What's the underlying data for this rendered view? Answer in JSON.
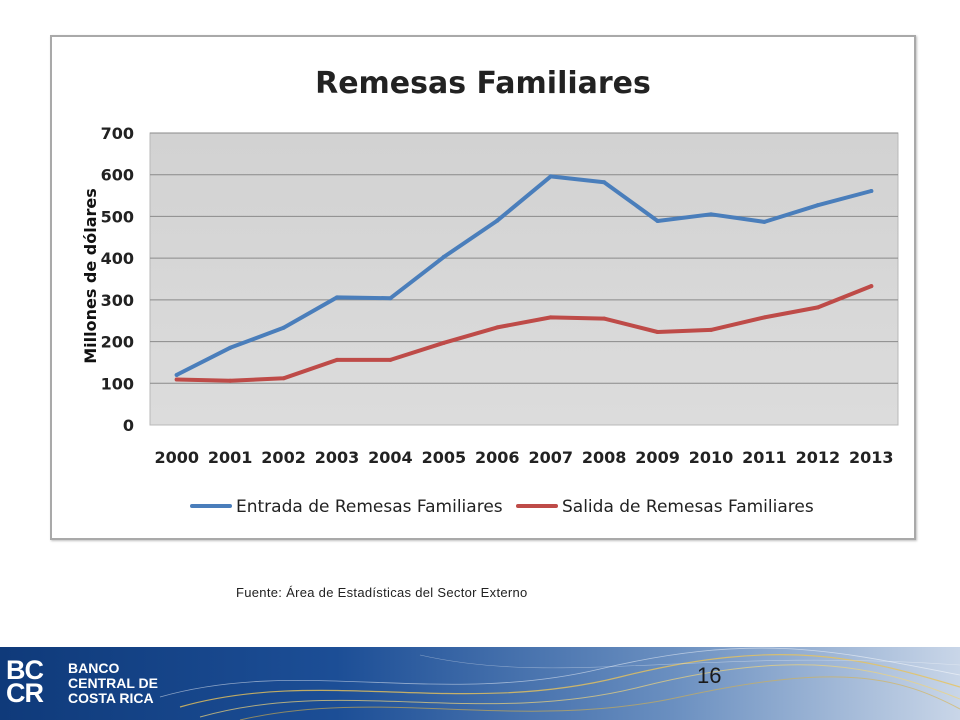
{
  "chart_data": {
    "type": "line",
    "title": "Remesas Familiares",
    "xlabel": "",
    "ylabel": "Millones de dólares",
    "ylim": [
      0,
      700
    ],
    "yticks": [
      0,
      100,
      200,
      300,
      400,
      500,
      600,
      700
    ],
    "grid": true,
    "legend_position": "bottom",
    "categories": [
      "2000",
      "2001",
      "2002",
      "2003",
      "2004",
      "2005",
      "2006",
      "2007",
      "2008",
      "2009",
      "2010",
      "2011",
      "2012",
      "2013"
    ],
    "series": [
      {
        "name": "Entrada de Remesas Familiares",
        "color": "#4a7ebb",
        "values": [
          120,
          185,
          233,
          306,
          304,
          403,
          490,
          596,
          582,
          489,
          505,
          487,
          527,
          561
        ]
      },
      {
        "name": "Salida de Remesas Familiares",
        "color": "#be4b48",
        "values": [
          109,
          106,
          112,
          156,
          156,
          197,
          234,
          258,
          255,
          223,
          228,
          258,
          282,
          333
        ]
      }
    ]
  },
  "source_note": "Fuente: Área de Estadísticas del Sector Externo",
  "footer": {
    "logo_text": [
      "BC",
      "CR"
    ],
    "bank_name": [
      "BANCO",
      "CENTRAL DE",
      "COSTA RICA"
    ],
    "page_number": "16"
  }
}
